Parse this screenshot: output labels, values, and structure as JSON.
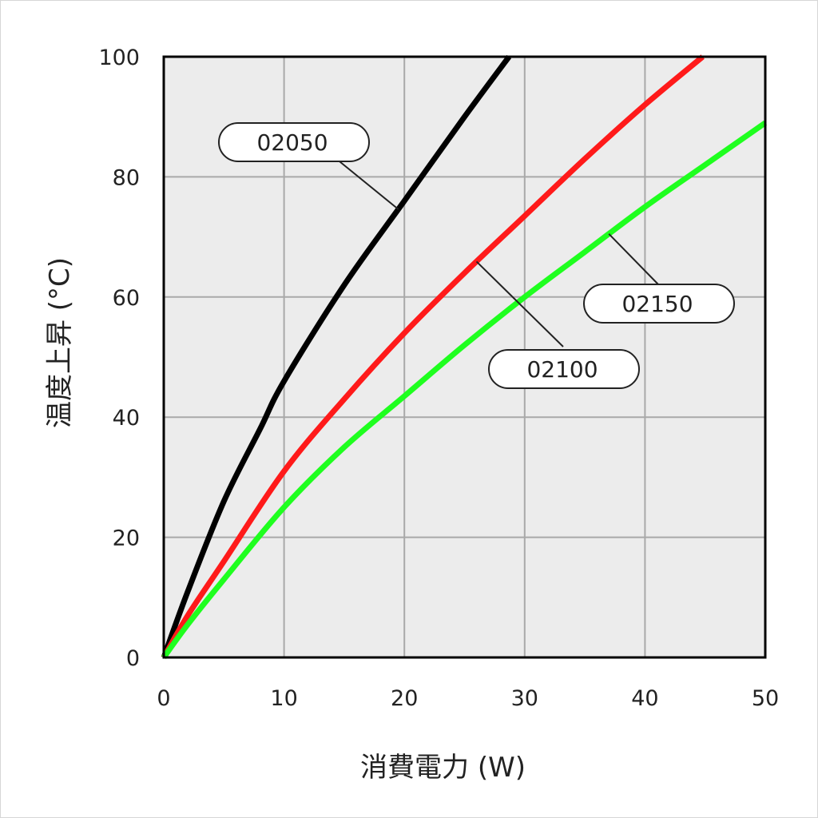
{
  "chart_data": {
    "type": "line",
    "xlabel": "消費電力 (W)",
    "ylabel": "温度上昇 (°C)",
    "xlim": [
      0,
      50
    ],
    "ylim": [
      0,
      100
    ],
    "x_ticks": [
      "0",
      "10",
      "20",
      "30",
      "40",
      "50"
    ],
    "y_ticks": [
      "0",
      "20",
      "40",
      "60",
      "80",
      "100"
    ],
    "grid": true,
    "background_color": "#ececec",
    "series": [
      {
        "name": "02050",
        "color": "#000000",
        "x": [
          0,
          2,
          5,
          8,
          10,
          15,
          20,
          25,
          28.7
        ],
        "y": [
          0,
          11,
          26,
          38,
          46,
          62,
          76,
          90,
          100
        ]
      },
      {
        "name": "02100",
        "color": "#ff1a1a",
        "x": [
          0,
          2,
          5,
          10,
          15,
          20,
          25,
          30,
          35,
          40,
          44.8
        ],
        "y": [
          0,
          7,
          16,
          31,
          43,
          54,
          64,
          73.5,
          83,
          92,
          100
        ]
      },
      {
        "name": "02150",
        "color": "#1fff1f",
        "x": [
          0,
          2,
          5,
          10,
          15,
          20,
          25,
          30,
          35,
          40,
          45,
          50
        ],
        "y": [
          0,
          5.5,
          13,
          25,
          35,
          43.5,
          52,
          60,
          67.5,
          75,
          82,
          89
        ]
      }
    ],
    "annotations": [
      {
        "label": "02050",
        "series": "02050",
        "at_x": 19.5
      },
      {
        "label": "02100",
        "series": "02100",
        "at_x": 26
      },
      {
        "label": "02150",
        "series": "02150",
        "at_x": 37
      }
    ]
  }
}
